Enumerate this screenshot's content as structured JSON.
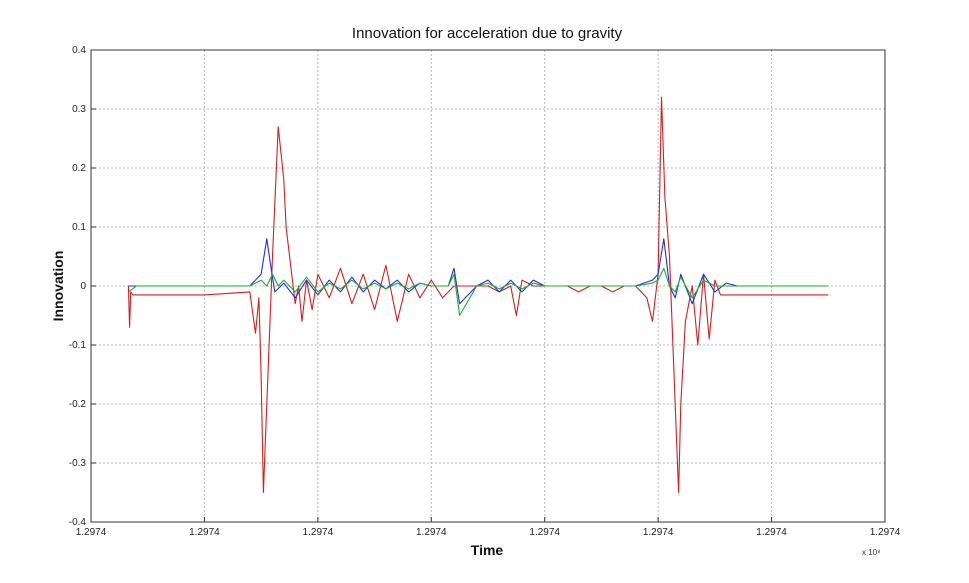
{
  "chart_data": {
    "type": "line",
    "title": "Innovation for acceleration due to gravity",
    "xlabel": "Time",
    "ylabel": "Innovation",
    "x_exponent_label": "x 10⁹",
    "xlim": [
      0,
      7
    ],
    "ylim": [
      -0.4,
      0.4
    ],
    "x_ticks": [
      0,
      1,
      2,
      3,
      4,
      5,
      6,
      7
    ],
    "x_tick_labels": [
      "1.2974",
      "1.2974",
      "1.2974",
      "1.2974",
      "1.2974",
      "1.2974",
      "1.2974",
      "1.2974"
    ],
    "y_ticks": [
      -0.4,
      -0.3,
      -0.2,
      -0.1,
      0,
      0.1,
      0.2,
      0.3,
      0.4
    ],
    "y_tick_labels": [
      "-0.4",
      "-0.3",
      "-0.2",
      "-0.1",
      "0",
      "0.1",
      "0.2",
      "0.3",
      "0.4"
    ],
    "grid": true,
    "series": [
      {
        "color": "#cc2222",
        "x": [
          0.33,
          0.34,
          0.35,
          0.37,
          0.4,
          1.0,
          1.4,
          1.45,
          1.48,
          1.5,
          1.52,
          1.55,
          1.6,
          1.65,
          1.7,
          1.72,
          1.8,
          1.83,
          1.86,
          1.9,
          1.95,
          2.0,
          2.1,
          2.2,
          2.3,
          2.4,
          2.5,
          2.6,
          2.7,
          2.8,
          2.9,
          3.0,
          3.1,
          3.2,
          3.3,
          3.4,
          3.5,
          3.6,
          3.7,
          3.75,
          3.8,
          3.9,
          4.0,
          4.1,
          4.2,
          4.3,
          4.4,
          4.5,
          4.6,
          4.7,
          4.8,
          4.9,
          4.95,
          5.0,
          5.03,
          5.06,
          5.1,
          5.13,
          5.18,
          5.2,
          5.24,
          5.3,
          5.35,
          5.4,
          5.45,
          5.5,
          5.55,
          5.6,
          5.65,
          5.7,
          6.0,
          6.5
        ],
        "y": [
          0.0,
          -0.07,
          -0.01,
          -0.015,
          -0.015,
          -0.015,
          -0.01,
          -0.08,
          -0.02,
          -0.15,
          -0.35,
          -0.2,
          0.05,
          0.27,
          0.18,
          0.1,
          -0.03,
          0.0,
          -0.06,
          0.01,
          -0.04,
          0.02,
          -0.02,
          0.03,
          -0.03,
          0.02,
          -0.04,
          0.035,
          -0.06,
          0.02,
          -0.02,
          0.01,
          -0.02,
          0.0,
          0.0,
          0.0,
          0.0,
          -0.01,
          0.0,
          -0.05,
          0.01,
          0.0,
          0.0,
          0.0,
          0.0,
          -0.01,
          0.0,
          0.0,
          -0.01,
          0.0,
          0.0,
          -0.02,
          -0.06,
          0.02,
          0.32,
          0.15,
          0.05,
          -0.1,
          -0.35,
          -0.2,
          -0.06,
          0.0,
          -0.1,
          0.02,
          -0.09,
          0.01,
          -0.015,
          -0.015,
          -0.015,
          -0.015,
          -0.015,
          -0.015
        ]
      },
      {
        "color": "#2233cc",
        "x": [
          0.33,
          0.4,
          1.0,
          1.4,
          1.5,
          1.55,
          1.58,
          1.62,
          1.7,
          1.8,
          1.9,
          2.0,
          2.1,
          2.2,
          2.3,
          2.4,
          2.5,
          2.6,
          2.7,
          2.8,
          2.9,
          3.0,
          3.15,
          3.2,
          3.25,
          3.4,
          3.5,
          3.6,
          3.7,
          3.8,
          3.9,
          4.0,
          4.2,
          4.5,
          4.8,
          4.95,
          5.0,
          5.05,
          5.1,
          5.15,
          5.2,
          5.3,
          5.4,
          5.5,
          5.6,
          5.7,
          6.0
        ],
        "y": [
          0.0,
          0.0,
          0.0,
          0.0,
          0.02,
          0.08,
          0.04,
          -0.01,
          0.005,
          -0.02,
          0.01,
          -0.015,
          0.01,
          -0.01,
          0.015,
          -0.01,
          0.01,
          -0.005,
          0.01,
          -0.01,
          0.005,
          0.0,
          0.0,
          0.03,
          -0.03,
          0.0,
          0.01,
          -0.01,
          0.01,
          -0.01,
          0.01,
          0.0,
          0.0,
          0.0,
          0.0,
          0.01,
          0.02,
          0.08,
          0.0,
          -0.02,
          0.02,
          -0.03,
          0.02,
          -0.01,
          0.005,
          0.0,
          0.0
        ]
      },
      {
        "color": "#22aa33",
        "x": [
          0.33,
          0.4,
          1.0,
          1.4,
          1.5,
          1.55,
          1.6,
          1.65,
          1.7,
          1.8,
          1.9,
          2.0,
          2.1,
          2.2,
          2.3,
          2.4,
          2.5,
          2.6,
          2.7,
          2.8,
          2.9,
          3.0,
          3.15,
          3.2,
          3.25,
          3.4,
          3.5,
          3.6,
          3.7,
          3.8,
          3.9,
          4.0,
          4.2,
          4.5,
          4.8,
          4.95,
          5.0,
          5.05,
          5.1,
          5.15,
          5.2,
          5.3,
          5.4,
          5.5,
          5.6,
          5.7,
          6.0,
          6.5
        ],
        "y": [
          -0.01,
          0.0,
          0.0,
          0.0,
          0.01,
          0.0,
          0.02,
          0.0,
          0.01,
          -0.01,
          0.015,
          -0.01,
          0.005,
          -0.005,
          0.01,
          -0.005,
          0.005,
          -0.005,
          0.005,
          -0.005,
          0.005,
          0.0,
          0.0,
          0.02,
          -0.05,
          0.0,
          0.005,
          -0.005,
          0.005,
          -0.005,
          0.005,
          0.0,
          0.0,
          0.0,
          0.0,
          0.005,
          0.01,
          0.03,
          0.0,
          -0.01,
          0.015,
          -0.02,
          0.01,
          0.0,
          0.0,
          0.0,
          0.0,
          0.0
        ]
      }
    ]
  }
}
